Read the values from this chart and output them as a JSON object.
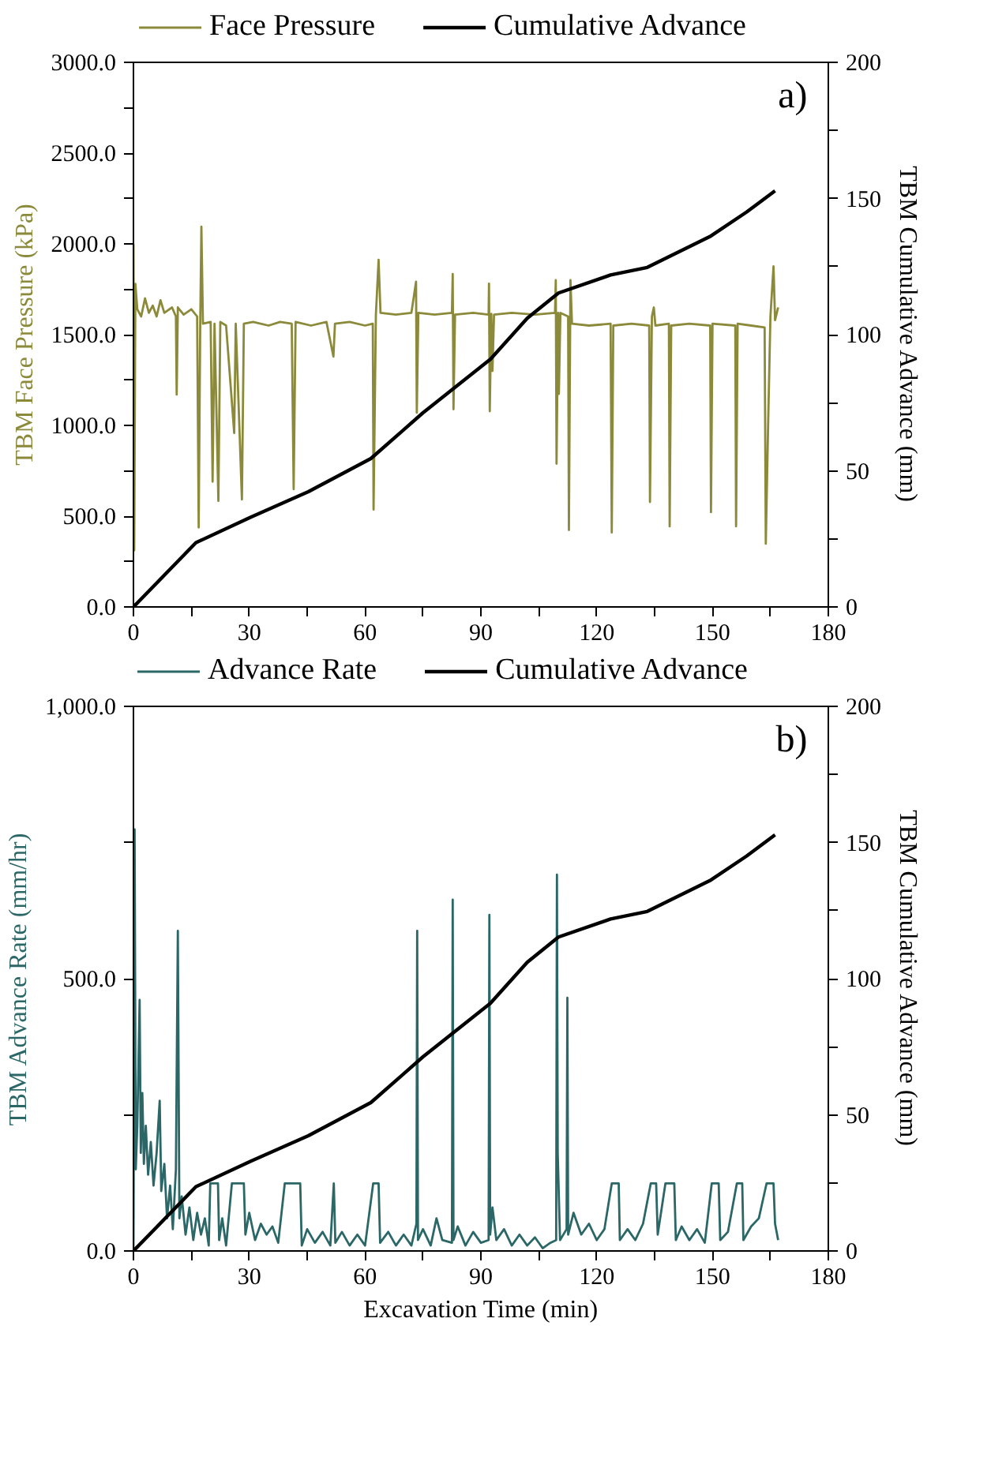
{
  "chart_data": [
    {
      "type": "line",
      "annotations": [
        "a)"
      ],
      "ylabel": "TBM Face Pressure (kPa)",
      "y2label": "TBM Cumulative Advance (mm)",
      "legend": "top",
      "grid": false,
      "xlim": [
        0,
        180
      ],
      "xticks": [
        0,
        {
          "value": 15,
          "label": null
        },
        30,
        {
          "value": 45,
          "label": null
        },
        60,
        {
          "value": 75,
          "label": null
        },
        90,
        {
          "value": 105,
          "label": null
        },
        120,
        {
          "value": 135,
          "label": null
        },
        150,
        {
          "value": 165,
          "label": null
        },
        180
      ],
      "ylim": [
        0,
        3000
      ],
      "yticks": [
        {
          "value": 0,
          "label": "0.0"
        },
        {
          "value": 250,
          "label": null
        },
        {
          "value": 500,
          "label": "500.0"
        },
        {
          "value": 750,
          "label": null
        },
        {
          "value": 1000,
          "label": "1000.0"
        },
        {
          "value": 1250,
          "label": null
        },
        {
          "value": 1500,
          "label": "1500.0"
        },
        {
          "value": 1750,
          "label": null
        },
        {
          "value": 2000,
          "label": "2000.0"
        },
        {
          "value": 2250,
          "label": null
        },
        {
          "value": 2500,
          "label": "2500.0"
        },
        {
          "value": 2750,
          "label": null
        },
        {
          "value": 3000,
          "label": "3000.0"
        }
      ],
      "y2lim": [
        0,
        200
      ],
      "y2ticks": [
        0,
        {
          "value": 25,
          "label": null
        },
        50,
        {
          "value": 75,
          "label": null
        },
        100,
        {
          "value": 125,
          "label": null
        },
        150,
        {
          "value": 175,
          "label": null
        },
        200
      ],
      "series": [
        {
          "name": "Face Pressure",
          "color": "#8b8a3a",
          "x": [
            0,
            0.2,
            0.5,
            1,
            2,
            3,
            4,
            5,
            6,
            7,
            8,
            10,
            11,
            11.2,
            11.5,
            13,
            15,
            16.5,
            16.9,
            17.3,
            17.6,
            18,
            20,
            20.5,
            21,
            22,
            22.5,
            24,
            26.1,
            26.5,
            28.1,
            28.6,
            31,
            35,
            38,
            41,
            41.5,
            42,
            46,
            50,
            51.8,
            52.2,
            56,
            60,
            62,
            62.2,
            62.8,
            63.5,
            64,
            68,
            72,
            73.2,
            73.4,
            73.8,
            78,
            82.5,
            82.7,
            82.9,
            83.3,
            88,
            92,
            92.1,
            92.3,
            92.7,
            93,
            93.4,
            98,
            104,
            109.2,
            109.4,
            109.6,
            110,
            110.2,
            110.6,
            112.6,
            112.8,
            113.2,
            113.6,
            118,
            123.6,
            123.9,
            124.3,
            129,
            133.6,
            133.8,
            134.3,
            134.8,
            135.2,
            138.7,
            138.9,
            139.3,
            144,
            149.4,
            149.6,
            150,
            155.9,
            156.1,
            156.5,
            160,
            163.5,
            163.8,
            164.4,
            165,
            165.8,
            166.2,
            167
          ],
          "values": [
            2000,
            312,
            1780,
            1640,
            1600,
            1700,
            1620,
            1660,
            1600,
            1690,
            1620,
            1650,
            1600,
            1170,
            1650,
            1610,
            1640,
            1600,
            438,
            1560,
            2095,
            1560,
            1570,
            690,
            1560,
            584,
            1570,
            1550,
            958,
            1560,
            592,
            1560,
            1570,
            1550,
            1570,
            1560,
            649,
            1570,
            1550,
            1570,
            1379,
            1560,
            1570,
            1550,
            1560,
            536,
            1610,
            1912,
            1620,
            1610,
            1620,
            1792,
            1070,
            1620,
            1610,
            1620,
            1834,
            1089,
            1610,
            1620,
            1610,
            1781,
            1078,
            1615,
            1300,
            1610,
            1620,
            1610,
            1620,
            1800,
            789,
            1620,
            1174,
            1620,
            1600,
            424,
            1800,
            1560,
            1550,
            1560,
            410,
            1550,
            1560,
            1550,
            578,
            1600,
            1650,
            1550,
            1560,
            444,
            1550,
            1560,
            1550,
            522,
            1560,
            1550,
            444,
            1560,
            1550,
            1540,
            348,
            1000,
            1600,
            1876,
            1580,
            1650
          ]
        },
        {
          "name": "Cumulative Advance",
          "color": "#000000",
          "axis": "y2",
          "x": [
            0,
            16.2,
            30.4,
            45.3,
            61.5,
            75,
            92.5,
            102,
            110.1,
            123.6,
            133.1,
            149.3,
            158.8,
            166.2
          ],
          "values": [
            0,
            23.6,
            33,
            42.3,
            54.5,
            71.3,
            91,
            106,
            115.3,
            121.9,
            124.7,
            136,
            145,
            152.8
          ]
        }
      ]
    },
    {
      "type": "line",
      "annotations": [
        "b)"
      ],
      "xlabel": "Excavation Time (min)",
      "ylabel": "TBM Advance Rate (mm/hr)",
      "y2label": "TBM Cumulative Advance (mm)",
      "legend": "top",
      "grid": false,
      "xlim": [
        0,
        180
      ],
      "xticks": [
        0,
        {
          "value": 15,
          "label": null
        },
        30,
        {
          "value": 45,
          "label": null
        },
        60,
        {
          "value": 75,
          "label": null
        },
        90,
        {
          "value": 105,
          "label": null
        },
        120,
        {
          "value": 135,
          "label": null
        },
        150,
        {
          "value": 165,
          "label": null
        },
        180
      ],
      "ylim": [
        0,
        1000
      ],
      "yticks": [
        {
          "value": 0,
          "label": "0.0"
        },
        {
          "value": 250,
          "label": null
        },
        {
          "value": 500,
          "label": "500.0"
        },
        {
          "value": 750,
          "label": null
        },
        {
          "value": 1000,
          "label": "1,000.0"
        }
      ],
      "y2lim": [
        0,
        200
      ],
      "y2ticks": [
        0,
        {
          "value": 25,
          "label": null
        },
        50,
        {
          "value": 75,
          "label": null
        },
        100,
        {
          "value": 125,
          "label": null
        },
        150,
        {
          "value": 175,
          "label": null
        },
        200
      ],
      "series": [
        {
          "name": "Advance Rate",
          "color": "#2b6767",
          "x": [
            0,
            0.3,
            0.6,
            1,
            1.6,
            1.9,
            2.3,
            2.7,
            3.2,
            3.8,
            4.5,
            5.2,
            6,
            6.8,
            7.2,
            8,
            8.7,
            9.5,
            10.2,
            11,
            11.5,
            11.9,
            12.5,
            13.5,
            14.5,
            15.5,
            16.5,
            17.5,
            18.5,
            19.5,
            19.9,
            21.9,
            22.2,
            23,
            24,
            25.5,
            28.6,
            29,
            30,
            31.5,
            33,
            34.5,
            36,
            37.5,
            39.2,
            43.2,
            43.6,
            45,
            47,
            49,
            51,
            51.9,
            52.3,
            54,
            56,
            58,
            60,
            62.1,
            63.5,
            63.9,
            66,
            68,
            70,
            72,
            73.3,
            73.5,
            73.7,
            75,
            77,
            78.5,
            80,
            82.5,
            82.7,
            82.9,
            84,
            86,
            88,
            90,
            92,
            92.2,
            92.4,
            93,
            94,
            96,
            98,
            100,
            102,
            104,
            106,
            108,
            109.5,
            109.7,
            109.9,
            110.5,
            112.2,
            112.4,
            112.6,
            114,
            116,
            118,
            120,
            122,
            123.9,
            125.7,
            126,
            128,
            130,
            132,
            134,
            135.4,
            135.8,
            137.8,
            140.1,
            140.5,
            142,
            144,
            146,
            148,
            149.8,
            151.6,
            152,
            154,
            156.3,
            157.7,
            158,
            160,
            162,
            164,
            165.8,
            166.2,
            167
          ],
          "values": [
            0,
            774,
            150,
            230,
            461,
            180,
            290,
            160,
            230,
            140,
            200,
            120,
            180,
            276,
            110,
            160,
            60,
            120,
            40,
            150,
            588,
            60,
            100,
            30,
            80,
            20,
            70,
            30,
            60,
            10,
            124,
            124,
            20,
            60,
            10,
            124,
            124,
            30,
            70,
            20,
            50,
            30,
            45,
            15,
            124,
            124,
            10,
            40,
            15,
            35,
            10,
            124,
            15,
            35,
            10,
            30,
            10,
            124,
            124,
            15,
            35,
            10,
            30,
            10,
            50,
            588,
            20,
            40,
            10,
            60,
            20,
            15,
            645,
            20,
            45,
            10,
            35,
            15,
            20,
            617,
            30,
            80,
            20,
            40,
            10,
            30,
            10,
            25,
            5,
            15,
            20,
            691,
            180,
            20,
            40,
            465,
            30,
            70,
            30,
            50,
            20,
            40,
            124,
            124,
            20,
            40,
            20,
            50,
            124,
            124,
            30,
            124,
            124,
            20,
            45,
            20,
            40,
            15,
            124,
            124,
            20,
            35,
            124,
            124,
            20,
            45,
            60,
            124,
            124,
            50,
            20
          ]
        },
        {
          "name": "Cumulative Advance",
          "color": "#000000",
          "axis": "y2",
          "x": [
            0,
            16.2,
            30.4,
            45.3,
            61.5,
            75,
            92.5,
            102,
            110.1,
            123.6,
            133.1,
            149.3,
            158.8,
            166.2
          ],
          "values": [
            0,
            23.6,
            33,
            42.3,
            54.5,
            71.3,
            91,
            106,
            115.3,
            121.9,
            124.7,
            136,
            145,
            152.8
          ]
        }
      ]
    }
  ]
}
